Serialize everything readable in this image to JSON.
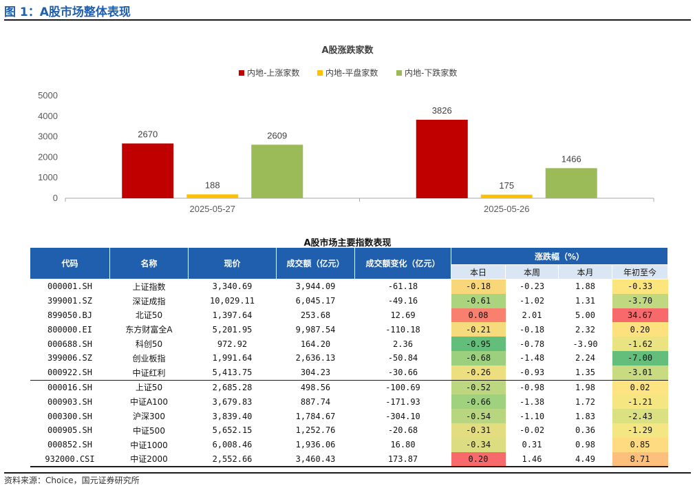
{
  "figure_title": "图 1：A股市场整体表现",
  "chart_data": {
    "type": "bar",
    "title": "A股涨跌家数",
    "categories": [
      "2025-05-27",
      "2025-05-26"
    ],
    "series": [
      {
        "name": "内地-上涨家数",
        "values": [
          2670,
          3826
        ],
        "color": "#c00000"
      },
      {
        "name": "内地-平盘家数",
        "values": [
          188,
          175
        ],
        "color": "#ffc000"
      },
      {
        "name": "内地-下跌家数",
        "values": [
          2609,
          1466
        ],
        "color": "#9bbb59"
      }
    ],
    "ylim": [
      0,
      5000
    ],
    "yticks": [
      "0",
      "1000",
      "2000",
      "3000",
      "4000",
      "5000"
    ],
    "legend_position": "top",
    "grid": false
  },
  "table": {
    "title": "A股市场主要指数表现",
    "headers": {
      "code": "代码",
      "name": "名称",
      "price": "现价",
      "turnover": "成交额（亿元）",
      "turnover_change": "成交额变化（亿元）",
      "change_group": "涨跌幅（%）",
      "day": "本日",
      "week": "本周",
      "month": "本月",
      "ytd": "年初至今"
    },
    "rows": [
      {
        "code": "000001.SH",
        "name": "上证指数",
        "price": "3,340.69",
        "turnover": "3,944.09",
        "chg": "-61.18",
        "day": "-0.18",
        "week": "-0.23",
        "month": "1.88",
        "ytd": "-0.33",
        "day_bg": "#f8d77b",
        "ytd_bg": "#fde57e"
      },
      {
        "code": "399001.SZ",
        "name": "深证成指",
        "price": "10,029.11",
        "turnover": "6,045.17",
        "chg": "-49.16",
        "day": "-0.61",
        "week": "-1.02",
        "month": "1.31",
        "ytd": "-3.70",
        "day_bg": "#abd47f",
        "ytd_bg": "#c0d981"
      },
      {
        "code": "899050.BJ",
        "name": "北证50",
        "price": "1,397.64",
        "turnover": "253.68",
        "chg": "12.69",
        "day": "0.08",
        "week": "2.01",
        "month": "5.00",
        "ytd": "34.67",
        "day_bg": "#f9806f",
        "ytd_bg": "#f8696b"
      },
      {
        "code": "800000.EI",
        "name": "东方财富全A",
        "price": "5,201.95",
        "turnover": "9,987.54",
        "chg": "-110.18",
        "day": "-0.21",
        "week": "-0.18",
        "month": "2.32",
        "ytd": "0.20",
        "day_bg": "#f6db7c",
        "ytd_bg": "#fee17f"
      },
      {
        "code": "000688.SH",
        "name": "科创50",
        "price": "972.92",
        "turnover": "164.20",
        "chg": "2.36",
        "day": "-0.95",
        "week": "-0.78",
        "month": "-3.90",
        "ytd": "-1.62",
        "day_bg": "#63be7b",
        "ytd_bg": "#eae382"
      },
      {
        "code": "399006.SZ",
        "name": "创业板指",
        "price": "1,991.64",
        "turnover": "2,636.13",
        "chg": "-50.84",
        "day": "-0.68",
        "week": "-1.48",
        "month": "2.24",
        "ytd": "-7.00",
        "day_bg": "#9dd07e",
        "ytd_bg": "#63be7b"
      },
      {
        "code": "000922.SH",
        "name": "中证红利",
        "price": "5,413.75",
        "turnover": "304.23",
        "chg": "-30.66",
        "day": "-0.26",
        "week": "-0.93",
        "month": "1.35",
        "ytd": "-3.01",
        "day_bg": "#edde80",
        "ytd_bg": "#c9db81"
      },
      {
        "code": "000016.SH",
        "name": "上证50",
        "price": "2,685.28",
        "turnover": "498.56",
        "chg": "-100.69",
        "day": "-0.52",
        "week": "-0.98",
        "month": "1.98",
        "ytd": "0.02",
        "day_bg": "#bcd780",
        "ytd_bg": "#fee383"
      },
      {
        "code": "000903.SH",
        "name": "中证A100",
        "price": "3,679.83",
        "turnover": "887.74",
        "chg": "-171.93",
        "day": "-0.66",
        "week": "-1.38",
        "month": "1.72",
        "ytd": "-1.21",
        "day_bg": "#a0d17f",
        "ytd_bg": "#f6e682"
      },
      {
        "code": "000300.SH",
        "name": "沪深300",
        "price": "3,839.40",
        "turnover": "1,784.67",
        "chg": "-304.10",
        "day": "-0.54",
        "week": "-1.10",
        "month": "1.83",
        "ytd": "-2.43",
        "day_bg": "#b8d67f",
        "ytd_bg": "#dbe081"
      },
      {
        "code": "000905.SH",
        "name": "中证500",
        "price": "5,652.15",
        "turnover": "1,252.76",
        "chg": "-20.68",
        "day": "-0.31",
        "week": "-0.02",
        "month": "0.36",
        "ytd": "-1.29",
        "day_bg": "#e3dd80",
        "ytd_bg": "#f4e682"
      },
      {
        "code": "000852.SH",
        "name": "中证1000",
        "price": "6,008.46",
        "turnover": "1,936.06",
        "chg": "16.80",
        "day": "-0.34",
        "week": "0.31",
        "month": "0.98",
        "ytd": "0.85",
        "day_bg": "#dcdc80",
        "ytd_bg": "#fedb80"
      },
      {
        "code": "932000.CSI",
        "name": "中证2000",
        "price": "2,552.66",
        "turnover": "3,460.43",
        "chg": "173.87",
        "day": "0.20",
        "week": "1.46",
        "month": "4.49",
        "ytd": "8.71",
        "day_bg": "#f8696b",
        "ytd_bg": "#fcc07c"
      }
    ]
  },
  "source": "资料来源：Choice，国元证券研究所"
}
